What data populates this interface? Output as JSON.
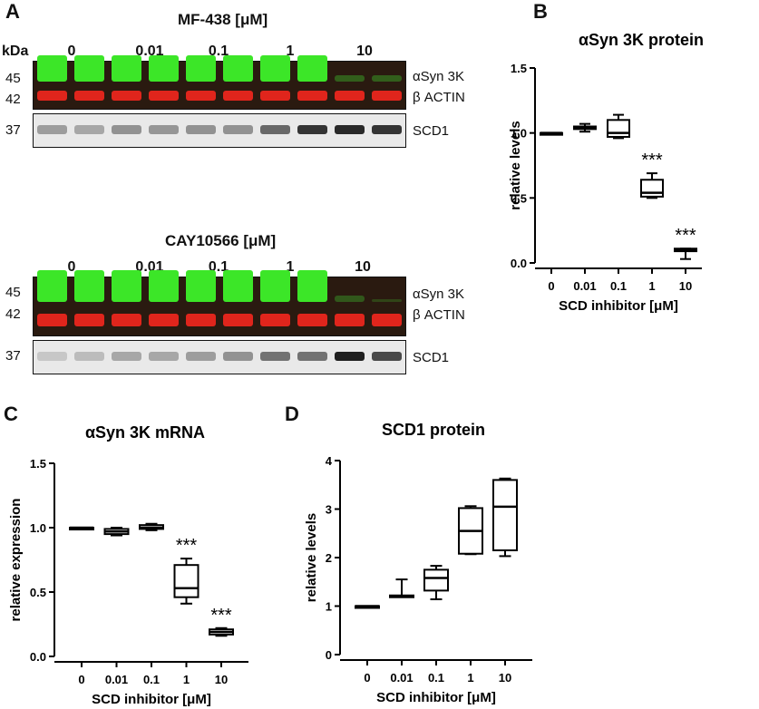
{
  "panels": {
    "A": "A",
    "B": "B",
    "C": "C",
    "D": "D"
  },
  "blots": [
    {
      "title": "MF-438 [μM]",
      "kda_header": "kDa",
      "doses": [
        "0",
        "0.01",
        "0.1",
        "1",
        "10"
      ],
      "kda_top": [
        "45",
        "42"
      ],
      "kda_bottom": "37",
      "bands_top": [
        "αSyn 3K",
        "β ACTIN"
      ],
      "band_bottom": "SCD1",
      "green_intensity": [
        1,
        1,
        1,
        1,
        1,
        1,
        1,
        1,
        0.25,
        0.25
      ],
      "scd1_intensity": [
        0.35,
        0.3,
        0.4,
        0.38,
        0.4,
        0.4,
        0.6,
        0.85,
        0.9,
        0.85
      ]
    },
    {
      "title": "CAY10566 [μM]",
      "doses": [
        "0",
        "0.01",
        "0.1",
        "1",
        "10"
      ],
      "kda_top": [
        "45",
        "42"
      ],
      "kda_bottom": "37",
      "bands_top": [
        "αSyn 3K",
        "β ACTIN"
      ],
      "band_bottom": "SCD1",
      "green_intensity": [
        1,
        1,
        1,
        1,
        1,
        1,
        1,
        1,
        0.2,
        0.05
      ],
      "scd1_intensity": [
        0.15,
        0.2,
        0.3,
        0.3,
        0.35,
        0.4,
        0.55,
        0.55,
        0.95,
        0.75
      ]
    }
  ],
  "chart_data": [
    {
      "panel": "B",
      "type": "box",
      "title": "αSyn 3K protein",
      "xlabel": "SCD inhibitor [μM]",
      "ylabel": "relative levels",
      "categories": [
        "0",
        "0.01",
        "0.1",
        "1",
        "10"
      ],
      "ylim": [
        0,
        1.5
      ],
      "yticks": [
        "0.0",
        "0.5",
        "1.0",
        "1.5"
      ],
      "boxes": [
        {
          "min": 1.0,
          "q1": 1.0,
          "median": 1.0,
          "q3": 1.0,
          "max": 1.0
        },
        {
          "min": 1.01,
          "q1": 1.03,
          "median": 1.04,
          "q3": 1.05,
          "max": 1.07
        },
        {
          "min": 0.96,
          "q1": 0.97,
          "median": 1.0,
          "q3": 1.1,
          "max": 1.14
        },
        {
          "min": 0.5,
          "q1": 0.51,
          "median": 0.54,
          "q3": 0.64,
          "max": 0.69
        },
        {
          "min": 0.03,
          "q1": 0.09,
          "median": 0.1,
          "q3": 0.11,
          "max": 0.11
        }
      ],
      "annotations": [
        {
          "category": "1",
          "text": "***"
        },
        {
          "category": "10",
          "text": "***"
        }
      ]
    },
    {
      "panel": "C",
      "type": "box",
      "title": "αSyn 3K mRNA",
      "xlabel": "SCD inhibitor [μM]",
      "ylabel": "relative expression",
      "categories": [
        "0",
        "0.01",
        "0.1",
        "1",
        "10"
      ],
      "ylim": [
        0,
        1.5
      ],
      "yticks": [
        "0.0",
        "0.5",
        "1.0",
        "1.5"
      ],
      "boxes": [
        {
          "min": 1.0,
          "q1": 1.0,
          "median": 1.0,
          "q3": 1.0,
          "max": 1.0
        },
        {
          "min": 0.94,
          "q1": 0.95,
          "median": 0.97,
          "q3": 0.99,
          "max": 1.0
        },
        {
          "min": 0.98,
          "q1": 0.99,
          "median": 1.0,
          "q3": 1.02,
          "max": 1.03
        },
        {
          "min": 0.41,
          "q1": 0.46,
          "median": 0.53,
          "q3": 0.71,
          "max": 0.76
        },
        {
          "min": 0.16,
          "q1": 0.17,
          "median": 0.19,
          "q3": 0.21,
          "max": 0.22
        }
      ],
      "annotations": [
        {
          "category": "1",
          "text": "***"
        },
        {
          "category": "10",
          "text": "***"
        }
      ]
    },
    {
      "panel": "D",
      "type": "box",
      "title": "SCD1 protein",
      "xlabel": "SCD inhibitor [μM]",
      "ylabel": "relative levels",
      "categories": [
        "0",
        "0.01",
        "0.1",
        "1",
        "10"
      ],
      "ylim": [
        0,
        4
      ],
      "yticks": [
        "0",
        "1",
        "2",
        "3",
        "4"
      ],
      "boxes": [
        {
          "min": 1.0,
          "q1": 1.0,
          "median": 1.0,
          "q3": 1.0,
          "max": 1.0
        },
        {
          "min": 1.2,
          "q1": 1.2,
          "median": 1.21,
          "q3": 1.22,
          "max": 1.55
        },
        {
          "min": 1.14,
          "q1": 1.32,
          "median": 1.58,
          "q3": 1.75,
          "max": 1.83
        },
        {
          "min": 2.07,
          "q1": 2.08,
          "median": 2.55,
          "q3": 3.02,
          "max": 3.06
        },
        {
          "min": 2.03,
          "q1": 2.15,
          "median": 3.05,
          "q3": 3.6,
          "max": 3.63
        }
      ],
      "annotations": []
    }
  ]
}
